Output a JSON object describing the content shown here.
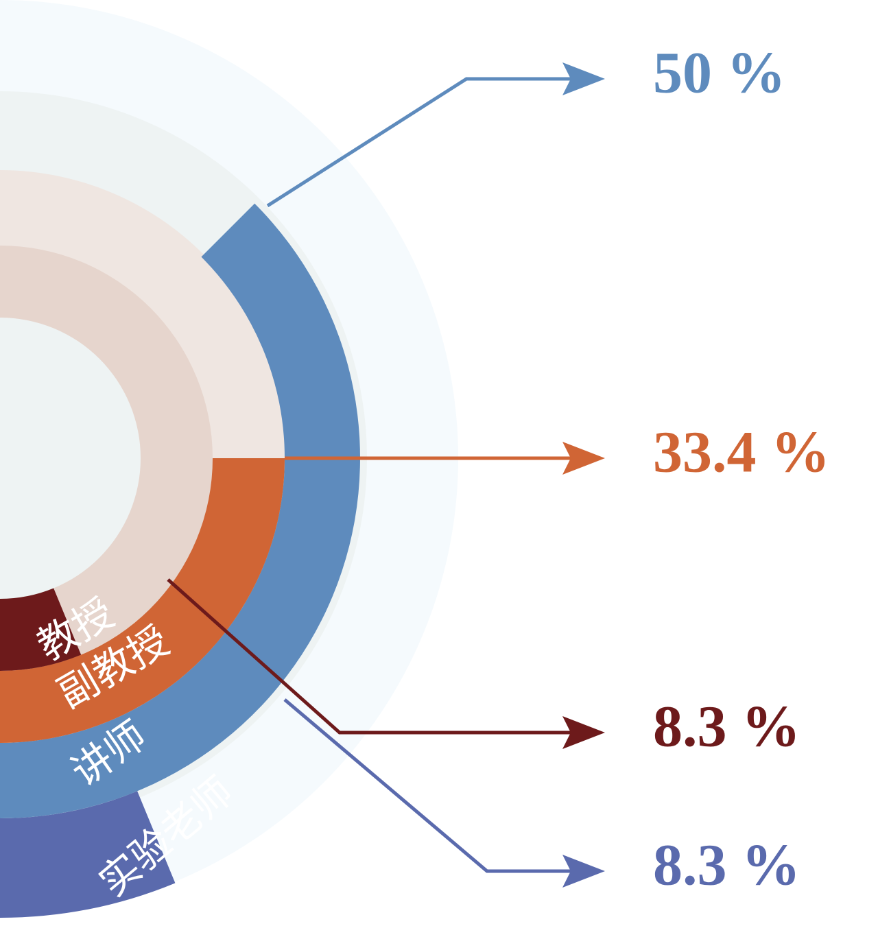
{
  "chart_data": {
    "type": "ring-arcs",
    "categories": [
      "教授",
      "副教授",
      "讲师",
      "实验老师"
    ],
    "values": [
      8.3,
      33.4,
      50,
      8.3
    ],
    "value_labels": [
      "8.3 %",
      "33.4 %",
      "50 %",
      "8.3 %"
    ],
    "colors": [
      "#6d1a1b",
      "#d06535",
      "#5e8bbd",
      "#5a6aad"
    ]
  }
}
